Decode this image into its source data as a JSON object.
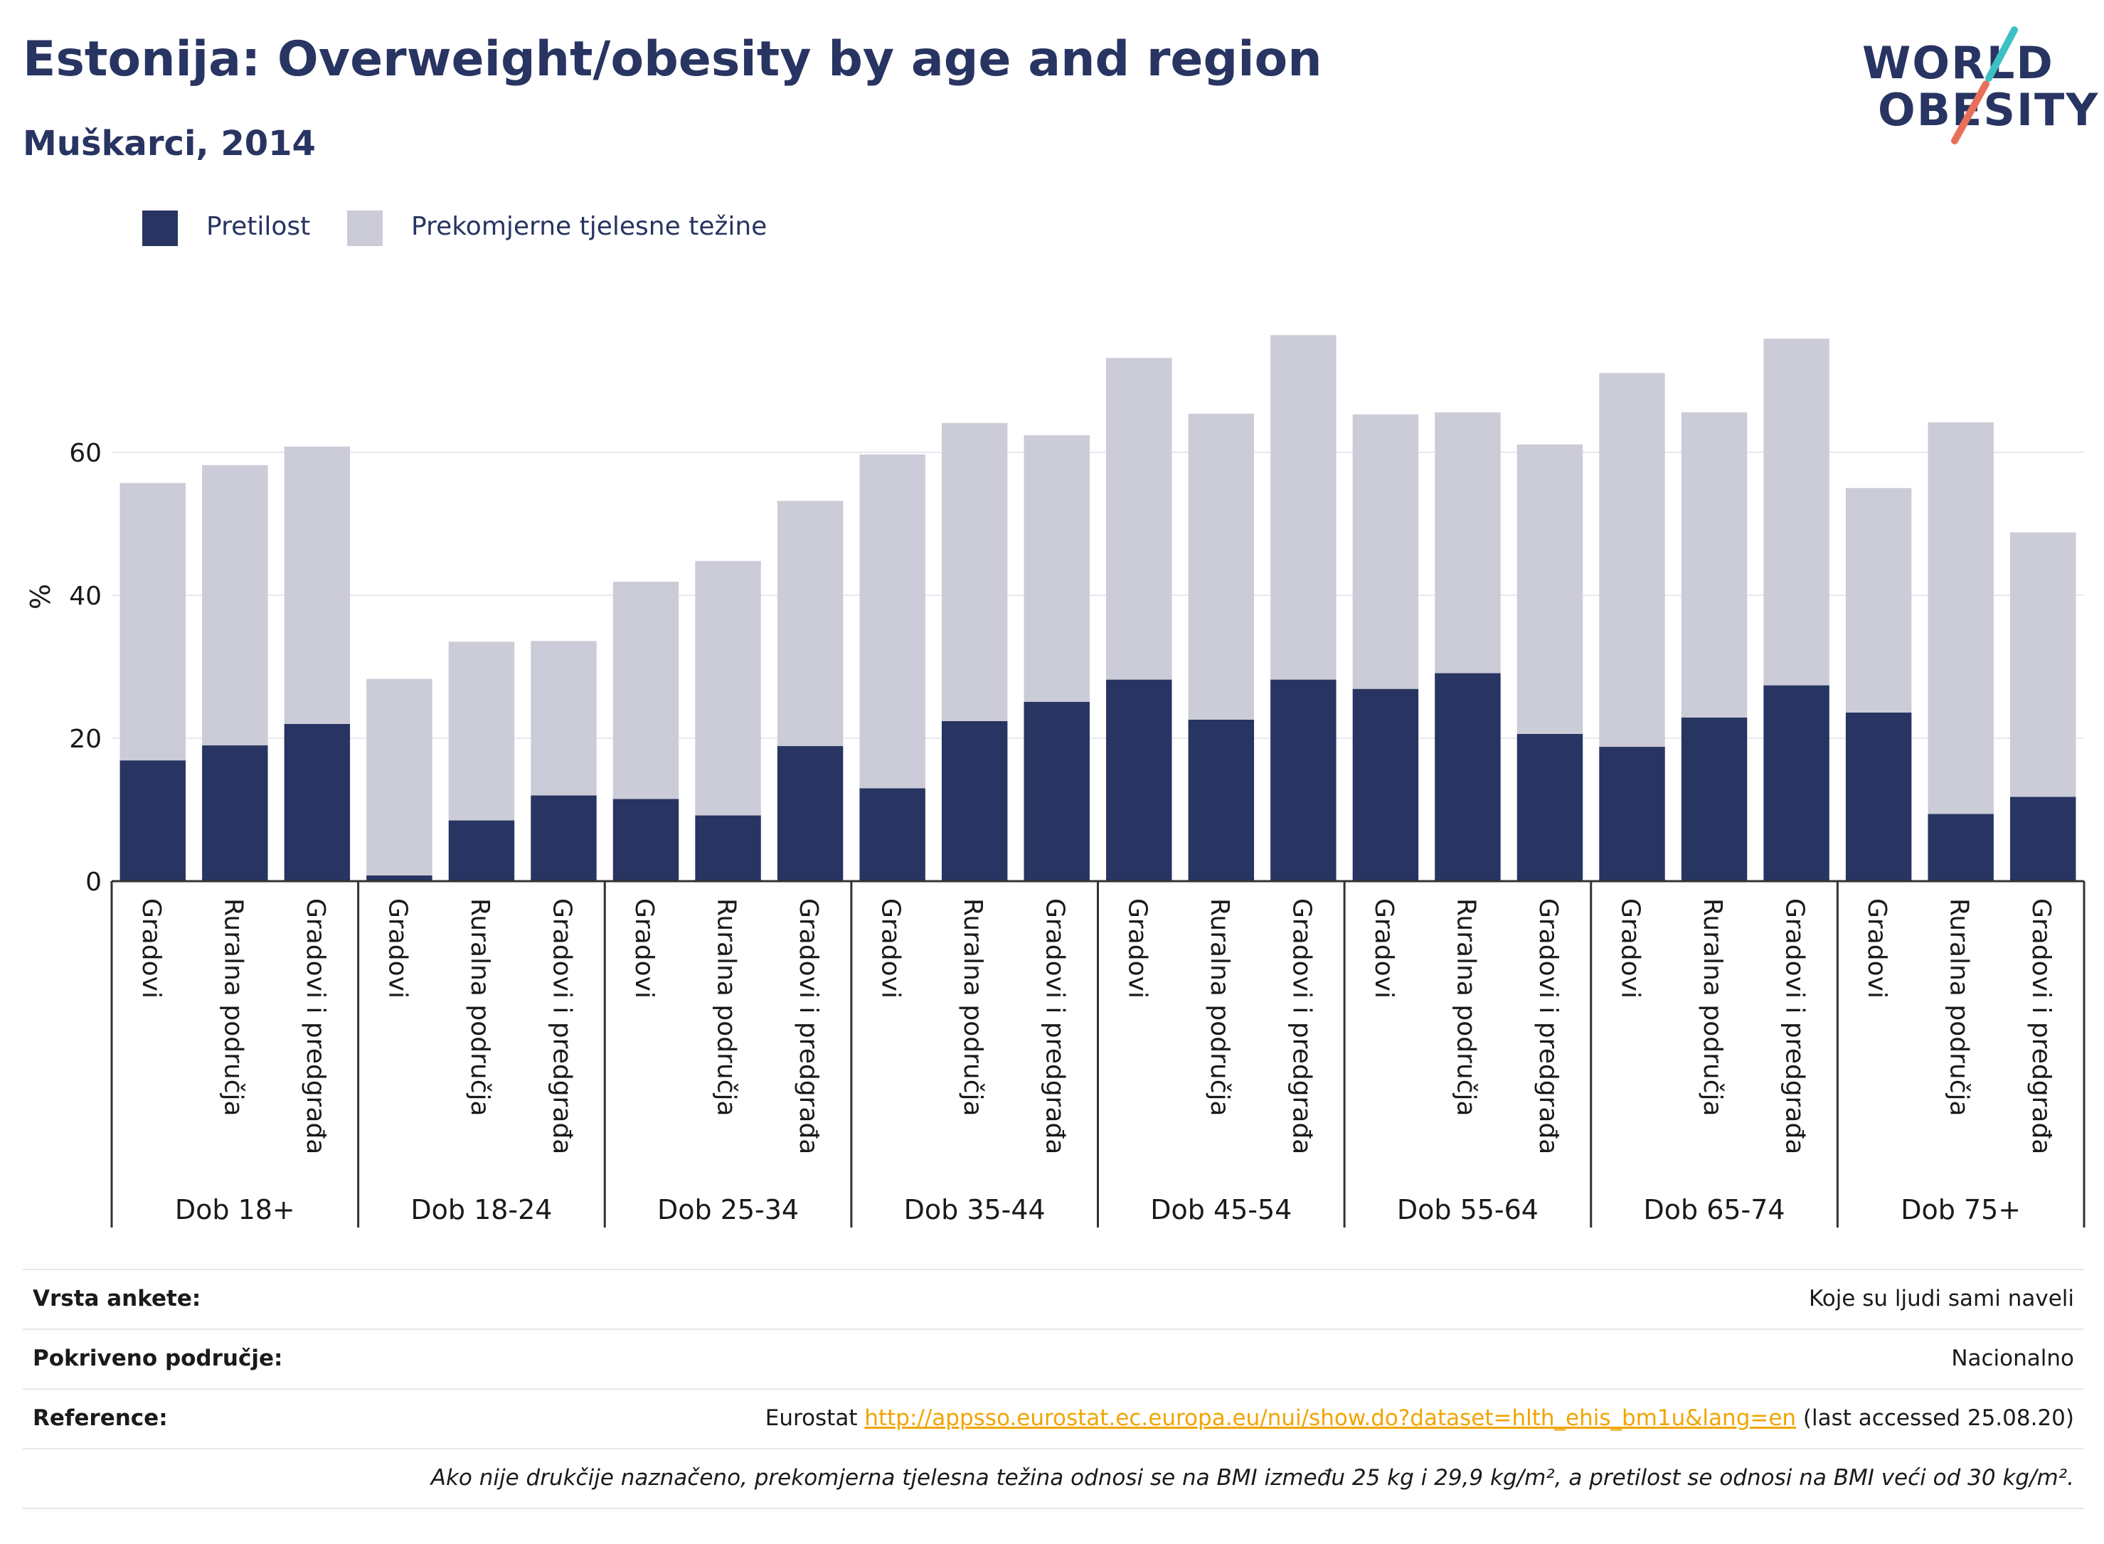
{
  "title": "Estonija: Overweight/obesity by age and region",
  "subtitle": "Muškarci, 2014",
  "logo": {
    "line1": "WORLD",
    "line2": "OBESITY"
  },
  "legend": [
    {
      "label": "Pretilost",
      "color": "#283461"
    },
    {
      "label": "Prekomjerne tjelesne težine",
      "color": "#cbccd8"
    }
  ],
  "chart_data": {
    "type": "bar",
    "stacked": true,
    "ylabel": "%",
    "ylim": [
      0,
      80
    ],
    "yticks": [
      0,
      20,
      40,
      60
    ],
    "grid": true,
    "legend_position": "top-left",
    "groups": [
      "Dob 18+",
      "Dob 18-24",
      "Dob 25-34",
      "Dob 35-44",
      "Dob 45-54",
      "Dob 55-64",
      "Dob 65-74",
      "Dob 75+"
    ],
    "subcategories": [
      "Gradovi",
      "Ruralna područja",
      "Gradovi i predgrađa"
    ],
    "series": [
      {
        "name": "Pretilost",
        "color": "#283461",
        "values": [
          16.9,
          19.0,
          22.0,
          0.8,
          8.5,
          12.0,
          11.5,
          9.2,
          18.9,
          13.0,
          22.4,
          25.1,
          28.2,
          22.6,
          28.2,
          26.9,
          29.1,
          20.6,
          18.8,
          22.9,
          27.4,
          23.6,
          9.4,
          11.8
        ]
      },
      {
        "name": "Prekomjerne tjelesne težine",
        "color": "#cbccd8",
        "values": [
          38.8,
          39.2,
          38.8,
          27.5,
          25.0,
          21.6,
          30.4,
          35.6,
          34.3,
          46.7,
          41.7,
          37.3,
          45.0,
          42.8,
          48.2,
          38.4,
          36.5,
          40.5,
          52.3,
          42.7,
          48.5,
          31.4,
          54.8,
          37.0
        ]
      }
    ],
    "totals": [
      55.7,
      58.2,
      60.8,
      28.3,
      33.5,
      33.6,
      41.9,
      44.8,
      53.2,
      59.7,
      64.1,
      62.4,
      73.2,
      65.4,
      76.4,
      65.3,
      65.6,
      61.1,
      71.1,
      65.6,
      75.9,
      55.0,
      64.2,
      48.8
    ]
  },
  "info": [
    {
      "label": "Vrsta ankete:",
      "value": "Koje su ljudi sami naveli"
    },
    {
      "label": "Pokriveno područje:",
      "value": "Nacionalno"
    },
    {
      "label": "Reference:",
      "prefix": "Eurostat ",
      "link": "http://appsso.eurostat.ec.europa.eu/nui/show.do?dataset=hlth_ehis_bm1u&lang=en",
      "suffix": " (last accessed 25.08.20)"
    }
  ],
  "note": "Ako nije drukčije naznačeno, prekomjerna tjelesna težina odnosi se na BMI između 25 kg i 29,9 kg/m², a pretilost se odnosi na BMI veći od 30 kg/m²."
}
